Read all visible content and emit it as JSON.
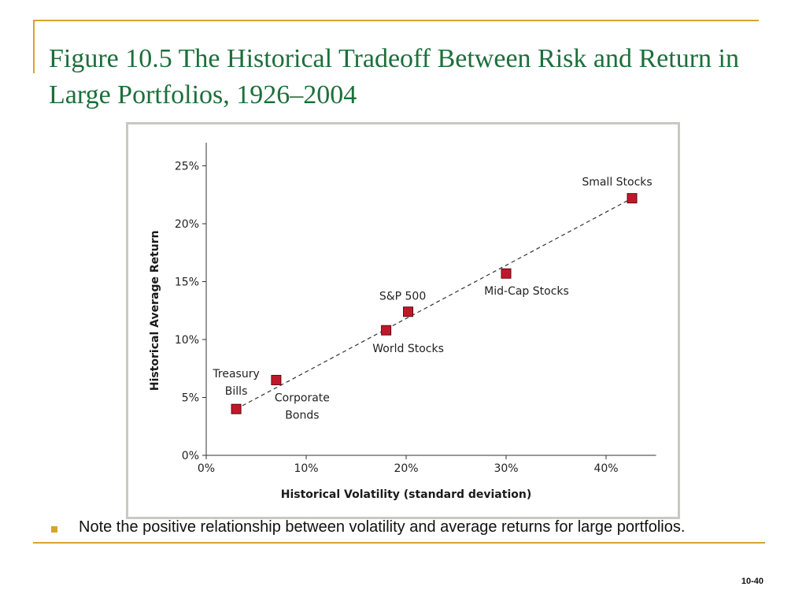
{
  "slide": {
    "title": "Figure 10.5  The Historical Tradeoff Between Risk and Return in Large Portfolios, 1926–2004",
    "bullet": "Note the positive relationship between volatility and average returns for large portfolios.",
    "page_number": "10-40",
    "accent_color": "#d4a52c",
    "title_color": "#1c6f3b"
  },
  "chart_data": {
    "type": "scatter",
    "title": "",
    "xlabel": "Historical Volatility (standard deviation)",
    "ylabel": "Historical Average Return",
    "xlim": [
      0,
      45
    ],
    "ylim": [
      0,
      27
    ],
    "x_ticks": [
      {
        "value": 0,
        "label": "0%"
      },
      {
        "value": 10,
        "label": "10%"
      },
      {
        "value": 20,
        "label": "20%"
      },
      {
        "value": 30,
        "label": "30%"
      },
      {
        "value": 40,
        "label": "40%"
      }
    ],
    "y_ticks": [
      {
        "value": 0,
        "label": "0%"
      },
      {
        "value": 5,
        "label": "5%"
      },
      {
        "value": 10,
        "label": "10%"
      },
      {
        "value": 15,
        "label": "15%"
      },
      {
        "value": 20,
        "label": "20%"
      },
      {
        "value": 25,
        "label": "25%"
      }
    ],
    "points": [
      {
        "label": "Treasury Bills",
        "x": 3.0,
        "y": 4.0
      },
      {
        "label": "Corporate Bonds",
        "x": 7.0,
        "y": 6.5
      },
      {
        "label": "World Stocks",
        "x": 18.0,
        "y": 10.8
      },
      {
        "label": "S&P 500",
        "x": 20.2,
        "y": 12.4
      },
      {
        "label": "Mid-Cap Stocks",
        "x": 30.0,
        "y": 15.7
      },
      {
        "label": "Small Stocks",
        "x": 42.6,
        "y": 22.2
      }
    ],
    "trend_line": {
      "style": "dashed",
      "from": {
        "x": 3.0,
        "y": 4.0
      },
      "to": {
        "x": 42.6,
        "y": 22.2
      }
    },
    "marker_color": "#c0182b",
    "grid": false
  }
}
